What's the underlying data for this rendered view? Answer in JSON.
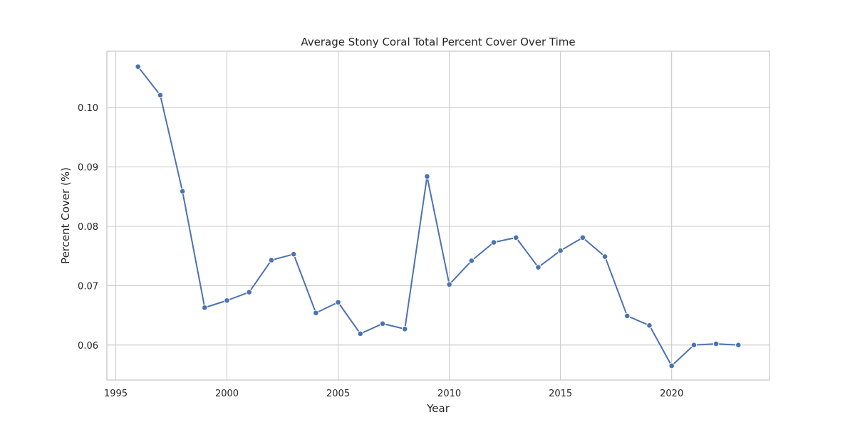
{
  "chart_data": {
    "type": "line",
    "title": "Average Stony Coral Total Percent Cover Over Time",
    "xlabel": "Year",
    "ylabel": "Percent Cover (%)",
    "xlim": [
      1994.6,
      2024.4
    ],
    "ylim": [
      0.0541,
      0.1095
    ],
    "xticks": [
      1995,
      2000,
      2005,
      2010,
      2015,
      2020
    ],
    "yticks": [
      0.06,
      0.07,
      0.08,
      0.09,
      0.1
    ],
    "ytick_labels": [
      "0.06",
      "0.07",
      "0.08",
      "0.09",
      "0.10"
    ],
    "grid": true,
    "marker": "circle",
    "color": "#4c72b0",
    "x": [
      1996,
      1997,
      1998,
      1999,
      2000,
      2001,
      2002,
      2003,
      2004,
      2005,
      2006,
      2007,
      2008,
      2009,
      2010,
      2011,
      2012,
      2013,
      2014,
      2015,
      2016,
      2017,
      2018,
      2019,
      2020,
      2021,
      2022,
      2023
    ],
    "y": [
      0.1069,
      0.1021,
      0.0859,
      0.0663,
      0.0675,
      0.0689,
      0.0743,
      0.0753,
      0.0654,
      0.0672,
      0.0619,
      0.0636,
      0.0627,
      0.0884,
      0.0702,
      0.0742,
      0.0773,
      0.0781,
      0.0731,
      0.0759,
      0.0781,
      0.0749,
      0.0649,
      0.0633,
      0.0565,
      0.06,
      0.0602,
      0.06
    ]
  }
}
